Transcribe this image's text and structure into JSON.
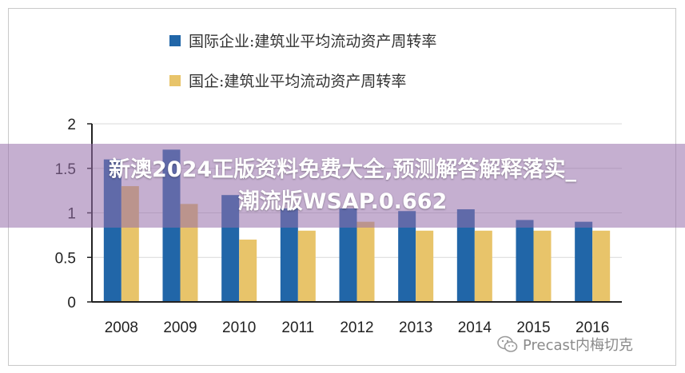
{
  "chart_data": {
    "type": "bar",
    "title": "",
    "xlabel": "",
    "ylabel": "",
    "ylim": [
      0,
      2
    ],
    "yticks": [
      "0",
      "0.5",
      "1",
      "1.5",
      "2"
    ],
    "grid": true,
    "legend_position": "top-left",
    "categories": [
      "2008",
      "2009",
      "2010",
      "2011",
      "2012",
      "2013",
      "2014",
      "2015",
      "2016"
    ],
    "series": [
      {
        "name": "国际企业:建筑业平均流动资产周转率",
        "color": "#2166a8",
        "values": [
          1.6,
          1.71,
          1.2,
          1.05,
          1.05,
          1.02,
          1.04,
          0.92,
          0.9
        ]
      },
      {
        "name": "国企:建筑业平均流动资产周转率",
        "color": "#e8c46a",
        "values": [
          1.3,
          1.1,
          0.7,
          0.8,
          0.9,
          0.8,
          0.8,
          0.8,
          0.8
        ]
      }
    ]
  },
  "overlay": {
    "line1": "新澳2024正版资料免费大全,预测解答解释落实_",
    "line2": "潮流版WSAP.0.662"
  },
  "watermark": {
    "text": "Precast内梅切克",
    "icon": "wechat-icon"
  }
}
